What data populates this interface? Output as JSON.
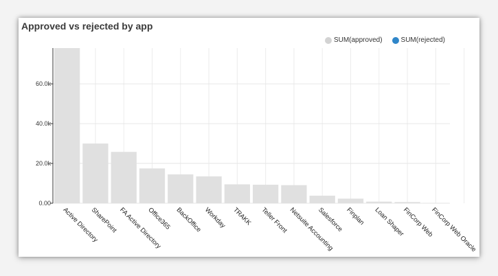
{
  "title": "Approved vs rejected by app",
  "legend": [
    {
      "label": "SUM(approved)",
      "color": "#d3d3d3"
    },
    {
      "label": "SUM(rejected)",
      "color": "#2f86c9"
    }
  ],
  "chart_data": {
    "type": "bar",
    "title": "Approved vs rejected by app",
    "categories": [
      "Active Directory",
      "SharePoint",
      "FA Active Directory",
      "Office365",
      "BackOffice",
      "Workday",
      "TRAKK",
      "Teller Front",
      "Netsuite Accounting",
      "Salesforce",
      "Finplan",
      "Loan Shaper",
      "FinCorp Web",
      "FinCorp Web Oracle"
    ],
    "series": [
      {
        "name": "SUM(approved)",
        "color": "#e0e0e0",
        "values": [
          78000,
          30000,
          25800,
          17500,
          14500,
          13500,
          9500,
          9300,
          9100,
          3800,
          2300,
          800,
          600,
          100
        ]
      },
      {
        "name": "SUM(rejected)",
        "color": "#2f86c9",
        "values": [
          0,
          0,
          0,
          0,
          0,
          0,
          0,
          0,
          0,
          0,
          0,
          0,
          0,
          0
        ]
      }
    ],
    "yticks": [
      "0.00",
      "20.0k",
      "40.0k",
      "60.0k"
    ],
    "ytick_values": [
      0,
      20000,
      40000,
      60000
    ],
    "ylim": [
      0,
      78000
    ],
    "grid": true,
    "legend_position": "top-right"
  }
}
